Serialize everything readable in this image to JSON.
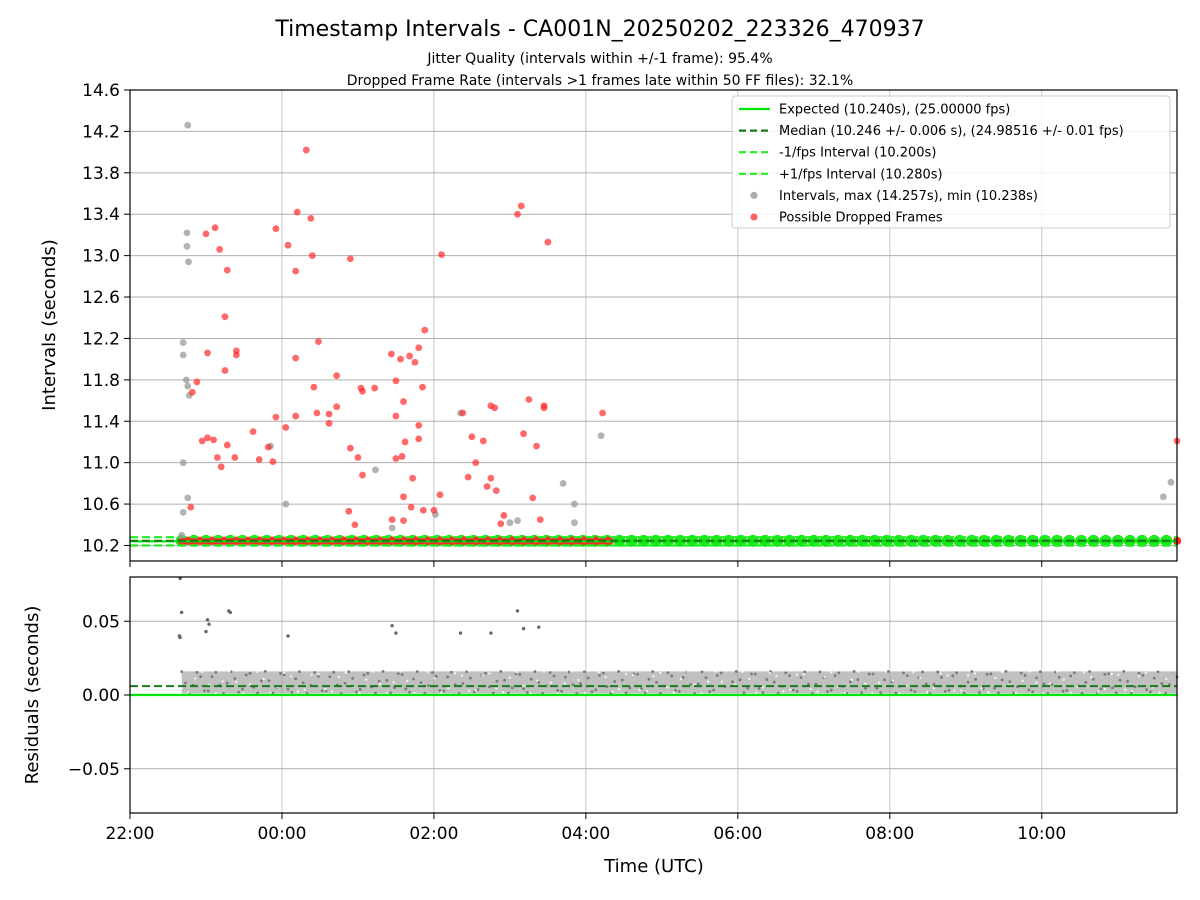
{
  "chart_data": [
    {
      "type": "scatter",
      "panel": "intervals",
      "title": "Timestamp Intervals - CA001N_20250202_223326_470937",
      "subtitle_1": "Jitter Quality (intervals within +/-1 frame): 95.4%",
      "subtitle_2": "Dropped Frame Rate (intervals >1 frames late within 50 FF files): 32.1%",
      "ylabel": "Intervals (seconds)",
      "ylim": [
        10.05,
        14.6
      ],
      "xlim_hours": [
        22.0,
        35.78
      ],
      "yticks": [
        "10.2",
        "10.6",
        "11.0",
        "11.4",
        "11.8",
        "12.2",
        "12.6",
        "13.0",
        "13.4",
        "13.8",
        "14.2",
        "14.6"
      ],
      "grid": true,
      "legend_position": "top-right",
      "reference_lines": {
        "expected": 10.24,
        "median": 10.246,
        "minus_one_frame": 10.2,
        "plus_one_frame": 10.28
      },
      "legend": [
        {
          "label": "Expected (10.240s), (25.00000 fps)",
          "style": "solid",
          "color": "#00e600"
        },
        {
          "label": "Median (10.246 +/- 0.006 s), (24.98516 +/- 0.01 fps)",
          "style": "dashed",
          "color": "#1a7a1a"
        },
        {
          "label": "-1/fps Interval (10.200s)",
          "style": "dashed",
          "color": "#22ee22"
        },
        {
          "label": "+1/fps Interval (10.280s)",
          "style": "dashed",
          "color": "#22ee22"
        },
        {
          "label": "Intervals, max (14.257s), min (10.238s)",
          "style": "dot",
          "color": "#999999"
        },
        {
          "label": "Possible Dropped Frames",
          "style": "dot",
          "color": "#ff3b3b"
        }
      ],
      "intervals_gray": [
        [
          22.68,
          10.3
        ],
        [
          22.7,
          11.0
        ],
        [
          22.7,
          12.16
        ],
        [
          22.7,
          12.04
        ],
        [
          22.74,
          11.8
        ],
        [
          22.76,
          11.74
        ],
        [
          22.78,
          11.65
        ],
        [
          22.76,
          10.66
        ],
        [
          22.75,
          13.22
        ],
        [
          22.75,
          13.09
        ],
        [
          22.77,
          12.94
        ],
        [
          22.76,
          14.26
        ],
        [
          22.7,
          10.52
        ],
        [
          23.85,
          11.16
        ],
        [
          24.05,
          10.6
        ],
        [
          25.23,
          10.93
        ],
        [
          25.45,
          10.37
        ],
        [
          26.02,
          10.5
        ],
        [
          26.35,
          11.48
        ],
        [
          27.0,
          10.42
        ],
        [
          27.1,
          10.44
        ],
        [
          27.7,
          10.8
        ],
        [
          27.85,
          10.6
        ],
        [
          27.85,
          10.42
        ],
        [
          28.2,
          11.26
        ],
        [
          35.6,
          10.67
        ],
        [
          35.7,
          10.81
        ]
      ],
      "dropped_red": [
        [
          22.8,
          10.57
        ],
        [
          22.82,
          11.68
        ],
        [
          22.88,
          11.78
        ],
        [
          22.95,
          11.21
        ],
        [
          23.02,
          11.24
        ],
        [
          23.1,
          11.22
        ],
        [
          23.15,
          11.05
        ],
        [
          23.2,
          10.96
        ],
        [
          23.28,
          11.17
        ],
        [
          23.38,
          11.05
        ],
        [
          23.4,
          12.08
        ],
        [
          23.4,
          12.04
        ],
        [
          23.62,
          11.3
        ],
        [
          23.7,
          11.03
        ],
        [
          23.82,
          11.15
        ],
        [
          23.88,
          11.01
        ],
        [
          23.02,
          12.06
        ],
        [
          23.18,
          13.06
        ],
        [
          23.25,
          12.41
        ],
        [
          23.25,
          11.89
        ],
        [
          23.28,
          12.86
        ],
        [
          23.0,
          13.21
        ],
        [
          23.12,
          13.27
        ],
        [
          23.92,
          13.26
        ],
        [
          24.08,
          13.1
        ],
        [
          24.18,
          12.85
        ],
        [
          24.2,
          13.42
        ],
        [
          24.32,
          14.02
        ],
        [
          24.38,
          13.36
        ],
        [
          24.4,
          13.0
        ],
        [
          24.18,
          12.01
        ],
        [
          24.48,
          12.17
        ],
        [
          24.42,
          11.73
        ],
        [
          24.05,
          11.34
        ],
        [
          23.92,
          11.44
        ],
        [
          24.18,
          11.45
        ],
        [
          24.46,
          11.48
        ],
        [
          24.62,
          11.38
        ],
        [
          24.72,
          11.84
        ],
        [
          24.72,
          11.54
        ],
        [
          24.62,
          11.47
        ],
        [
          24.9,
          11.14
        ],
        [
          24.9,
          12.97
        ],
        [
          24.96,
          10.4
        ],
        [
          24.88,
          10.53
        ],
        [
          25.0,
          11.05
        ],
        [
          25.04,
          11.72
        ],
        [
          25.06,
          11.69
        ],
        [
          25.06,
          10.88
        ],
        [
          25.22,
          11.72
        ],
        [
          25.44,
          12.05
        ],
        [
          25.5,
          11.79
        ],
        [
          25.56,
          12.0
        ],
        [
          25.68,
          12.03
        ],
        [
          25.75,
          11.97
        ],
        [
          25.8,
          12.11
        ],
        [
          25.88,
          12.28
        ],
        [
          25.85,
          11.73
        ],
        [
          25.5,
          11.45
        ],
        [
          25.6,
          11.59
        ],
        [
          25.62,
          11.2
        ],
        [
          25.8,
          11.36
        ],
        [
          25.8,
          11.23
        ],
        [
          25.86,
          10.54
        ],
        [
          25.58,
          11.06
        ],
        [
          25.72,
          10.85
        ],
        [
          25.7,
          10.57
        ],
        [
          25.6,
          10.44
        ],
        [
          25.6,
          10.67
        ],
        [
          25.5,
          11.04
        ],
        [
          25.45,
          10.45
        ],
        [
          26.1,
          13.01
        ],
        [
          26.08,
          10.69
        ],
        [
          26.0,
          10.54
        ],
        [
          26.38,
          11.48
        ],
        [
          26.45,
          10.86
        ],
        [
          26.5,
          11.25
        ],
        [
          26.55,
          11.0
        ],
        [
          26.65,
          11.21
        ],
        [
          26.7,
          10.77
        ],
        [
          26.75,
          11.55
        ],
        [
          26.8,
          11.53
        ],
        [
          26.82,
          10.73
        ],
        [
          26.75,
          10.85
        ],
        [
          26.88,
          10.41
        ],
        [
          26.92,
          10.49
        ],
        [
          27.1,
          13.4
        ],
        [
          27.15,
          13.48
        ],
        [
          27.18,
          11.28
        ],
        [
          27.25,
          11.61
        ],
        [
          27.35,
          11.16
        ],
        [
          27.45,
          11.55
        ],
        [
          27.45,
          11.53
        ],
        [
          27.5,
          13.13
        ],
        [
          27.4,
          10.45
        ],
        [
          27.3,
          10.66
        ],
        [
          28.22,
          11.48
        ],
        [
          35.78,
          11.21
        ]
      ],
      "dense_band": {
        "y": 10.245,
        "x_start": 22.68,
        "x_end": 35.78,
        "red_until": 28.35,
        "gray_rows": [
          10.25
        ]
      }
    },
    {
      "type": "scatter",
      "panel": "residuals",
      "ylabel": "Residuals (seconds)",
      "xlabel": "Time (UTC)",
      "ylim": [
        -0.08,
        0.08
      ],
      "yticks": [
        "0.05",
        "0.00",
        "−0.05"
      ],
      "xticks": [
        "22:00",
        "00:00",
        "02:00",
        "04:00",
        "06:00",
        "08:00",
        "10:00"
      ],
      "grid": true,
      "reference_lines": {
        "expected": 0.0,
        "median": 0.006
      },
      "outliers": [
        [
          22.65,
          0.04
        ],
        [
          22.66,
          0.039
        ],
        [
          22.68,
          0.056
        ],
        [
          23.0,
          0.043
        ],
        [
          23.02,
          0.051
        ],
        [
          23.04,
          0.048
        ],
        [
          23.3,
          0.057
        ],
        [
          23.32,
          0.056
        ],
        [
          24.08,
          0.04
        ],
        [
          25.45,
          0.047
        ],
        [
          25.5,
          0.042
        ],
        [
          26.35,
          0.042
        ],
        [
          26.75,
          0.042
        ],
        [
          27.1,
          0.057
        ],
        [
          27.18,
          0.045
        ],
        [
          27.38,
          0.046
        ],
        [
          22.66,
          0.079
        ]
      ],
      "band": {
        "x_start": 22.68,
        "x_end": 35.78,
        "low": 0.001,
        "high": 0.016
      }
    }
  ]
}
